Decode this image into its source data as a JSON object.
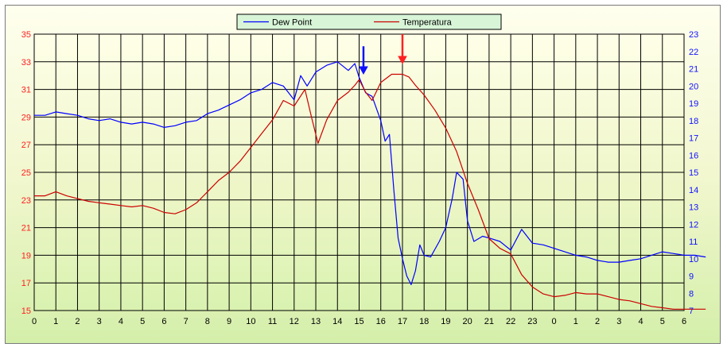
{
  "chart_data": {
    "type": "line",
    "title": "",
    "xlabel": "",
    "ylabel": "",
    "y2label": "",
    "grid": true,
    "legend_position": "top-center",
    "x_tick_labels": [
      "0",
      "1",
      "2",
      "3",
      "4",
      "5",
      "6",
      "7",
      "8",
      "9",
      "10",
      "11",
      "12",
      "13",
      "14",
      "15",
      "16",
      "17",
      "18",
      "19",
      "20",
      "21",
      "22",
      "23",
      "0",
      "1",
      "2",
      "3",
      "4",
      "5",
      "6"
    ],
    "ylim_left": [
      15,
      35
    ],
    "yticks_left": [
      15,
      17,
      19,
      21,
      23,
      25,
      27,
      29,
      31,
      33,
      35
    ],
    "ylim_right": [
      7,
      23
    ],
    "yticks_right": [
      7,
      8,
      9,
      10,
      11,
      12,
      13,
      14,
      15,
      16,
      17,
      18,
      19,
      20,
      21,
      22,
      23
    ],
    "series": [
      {
        "name": "Dew Point",
        "axis": "right",
        "color": "#0000ff",
        "points": [
          [
            0,
            18.3
          ],
          [
            0.5,
            18.3
          ],
          [
            1,
            18.5
          ],
          [
            1.5,
            18.4
          ],
          [
            2,
            18.3
          ],
          [
            2.5,
            18.1
          ],
          [
            3,
            18.0
          ],
          [
            3.5,
            18.1
          ],
          [
            4,
            17.9
          ],
          [
            4.5,
            17.8
          ],
          [
            5,
            17.9
          ],
          [
            5.5,
            17.8
          ],
          [
            6,
            17.6
          ],
          [
            6.5,
            17.7
          ],
          [
            7,
            17.9
          ],
          [
            7.5,
            18.0
          ],
          [
            8,
            18.4
          ],
          [
            8.5,
            18.6
          ],
          [
            9,
            18.9
          ],
          [
            9.5,
            19.2
          ],
          [
            10,
            19.6
          ],
          [
            10.5,
            19.8
          ],
          [
            11,
            20.2
          ],
          [
            11.5,
            20.0
          ],
          [
            12,
            19.2
          ],
          [
            12.3,
            20.6
          ],
          [
            12.6,
            20.0
          ],
          [
            13,
            20.8
          ],
          [
            13.5,
            21.2
          ],
          [
            14,
            21.4
          ],
          [
            14.5,
            20.9
          ],
          [
            14.8,
            21.3
          ],
          [
            15,
            20.5
          ],
          [
            15.3,
            19.6
          ],
          [
            15.6,
            19.4
          ],
          [
            16,
            18.0
          ],
          [
            16.2,
            16.8
          ],
          [
            16.4,
            17.2
          ],
          [
            16.6,
            14.0
          ],
          [
            16.8,
            11.2
          ],
          [
            17,
            10.0
          ],
          [
            17.2,
            9.0
          ],
          [
            17.4,
            8.5
          ],
          [
            17.6,
            9.3
          ],
          [
            17.8,
            10.8
          ],
          [
            18,
            10.2
          ],
          [
            18.3,
            10.1
          ],
          [
            18.7,
            11.0
          ],
          [
            19,
            11.8
          ],
          [
            19.3,
            13.5
          ],
          [
            19.5,
            15.0
          ],
          [
            19.8,
            14.6
          ],
          [
            20,
            12.2
          ],
          [
            20.3,
            11.0
          ],
          [
            20.7,
            11.3
          ],
          [
            21,
            11.2
          ],
          [
            21.5,
            11.0
          ],
          [
            22,
            10.5
          ],
          [
            22.5,
            11.7
          ],
          [
            23,
            10.9
          ],
          [
            23.5,
            10.8
          ],
          [
            24,
            10.6
          ],
          [
            24.5,
            10.4
          ],
          [
            25,
            10.2
          ],
          [
            25.5,
            10.1
          ],
          [
            26,
            9.9
          ],
          [
            26.5,
            9.8
          ],
          [
            27,
            9.8
          ],
          [
            27.5,
            9.9
          ],
          [
            28,
            10.0
          ],
          [
            28.5,
            10.2
          ],
          [
            29,
            10.4
          ],
          [
            29.5,
            10.3
          ],
          [
            30,
            10.2
          ],
          [
            30.5,
            10.2
          ],
          [
            31,
            10.1
          ]
        ]
      },
      {
        "name": "Temperatura",
        "axis": "left",
        "color": "#cc0000",
        "points": [
          [
            0,
            23.3
          ],
          [
            0.5,
            23.3
          ],
          [
            1,
            23.6
          ],
          [
            1.5,
            23.3
          ],
          [
            2,
            23.1
          ],
          [
            2.5,
            22.9
          ],
          [
            3,
            22.8
          ],
          [
            3.5,
            22.7
          ],
          [
            4,
            22.6
          ],
          [
            4.5,
            22.5
          ],
          [
            5,
            22.6
          ],
          [
            5.5,
            22.4
          ],
          [
            6,
            22.1
          ],
          [
            6.5,
            22.0
          ],
          [
            7,
            22.3
          ],
          [
            7.5,
            22.8
          ],
          [
            8,
            23.6
          ],
          [
            8.5,
            24.4
          ],
          [
            9,
            25.0
          ],
          [
            9.5,
            25.8
          ],
          [
            10,
            26.8
          ],
          [
            10.5,
            27.8
          ],
          [
            11,
            28.8
          ],
          [
            11.5,
            30.2
          ],
          [
            12,
            29.8
          ],
          [
            12.5,
            31.0
          ],
          [
            12.8,
            29.0
          ],
          [
            13.1,
            27.1
          ],
          [
            13.5,
            28.8
          ],
          [
            14,
            30.2
          ],
          [
            14.5,
            30.8
          ],
          [
            14.8,
            31.3
          ],
          [
            15,
            31.7
          ],
          [
            15.3,
            30.8
          ],
          [
            15.6,
            30.2
          ],
          [
            16,
            31.5
          ],
          [
            16.5,
            32.1
          ],
          [
            17,
            32.1
          ],
          [
            17.3,
            31.9
          ],
          [
            17.6,
            31.3
          ],
          [
            18,
            30.6
          ],
          [
            18.5,
            29.5
          ],
          [
            19,
            28.2
          ],
          [
            19.5,
            26.5
          ],
          [
            20,
            24.2
          ],
          [
            20.5,
            22.3
          ],
          [
            21,
            20.2
          ],
          [
            21.5,
            19.5
          ],
          [
            22,
            19.1
          ],
          [
            22.5,
            17.6
          ],
          [
            23,
            16.7
          ],
          [
            23.5,
            16.2
          ],
          [
            24,
            16.0
          ],
          [
            24.5,
            16.1
          ],
          [
            25,
            16.3
          ],
          [
            25.5,
            16.2
          ],
          [
            26,
            16.2
          ],
          [
            26.5,
            16.0
          ],
          [
            27,
            15.8
          ],
          [
            27.5,
            15.7
          ],
          [
            28,
            15.5
          ],
          [
            28.5,
            15.3
          ],
          [
            29,
            15.2
          ],
          [
            29.5,
            15.1
          ],
          [
            30,
            15.1
          ],
          [
            30.5,
            15.1
          ],
          [
            31,
            15.1
          ]
        ]
      }
    ],
    "annotations": [
      {
        "kind": "arrow",
        "color": "#1010ff",
        "x": 15.2,
        "y_axis": "right",
        "y_from": 22.3,
        "y_to": 20.7
      },
      {
        "kind": "arrow",
        "color": "#ff2020",
        "x": 17.0,
        "y_axis": "right",
        "y_from": 23.0,
        "y_to": 21.3
      }
    ],
    "colors": {
      "grid": "#000000",
      "left_axis_labels": "#ff2020",
      "right_axis_labels": "#1010ff"
    }
  }
}
